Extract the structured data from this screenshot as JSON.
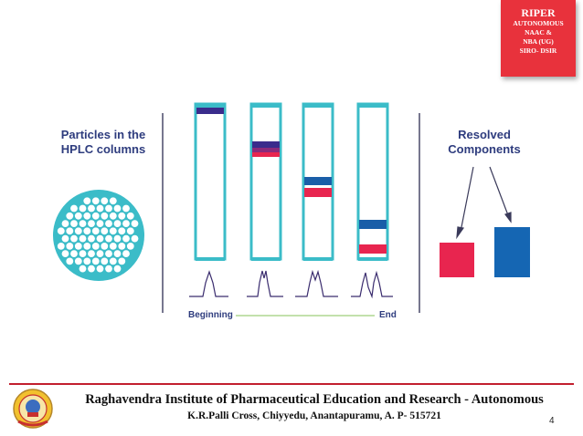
{
  "badge": {
    "title": "RIPER",
    "lines": [
      "AUTONOMOUS",
      "NAAC &",
      "NBA (UG)",
      "SIRO- DSIR"
    ]
  },
  "diagram": {
    "left_title": "Particles in the HPLC columns",
    "right_title": "Resolved Components",
    "axis_start": "Beginning",
    "axis_end": "End"
  },
  "colors": {
    "teal": "#3bbcc8",
    "navy": "#2e3c7e",
    "blue": "#1566b3",
    "red": "#e8254f",
    "purple": "#3a2c8c",
    "badge_red": "#e8323c",
    "green_line": "#9fcf7a"
  },
  "footer": {
    "institution": "Raghavendra Institute of Pharmaceutical Education and Research - Autonomous",
    "address": "K.R.Palli Cross, Chiyyedu, Anantapuramu, A. P- 515721",
    "page_number": "4"
  }
}
